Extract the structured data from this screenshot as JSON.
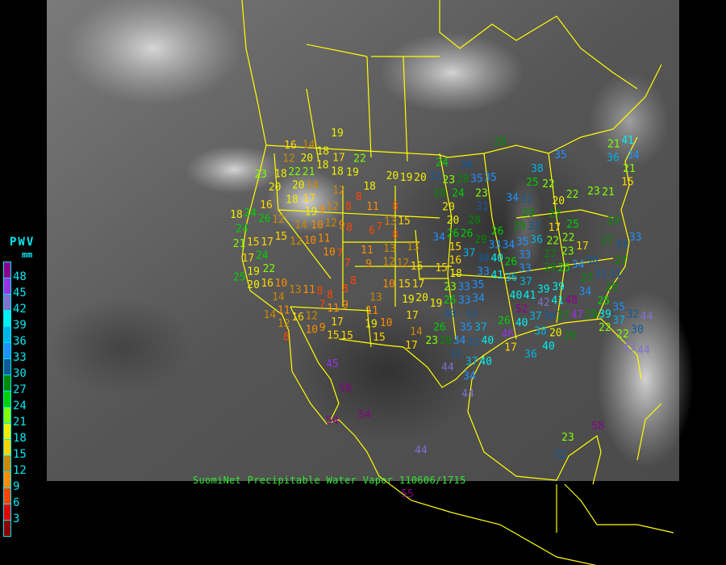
{
  "caption": "SuomiNet Precipitable Water Vapor 110606/1715",
  "legend": {
    "title": "PWV",
    "unit": "mm",
    "labels": [
      "48",
      "45",
      "42",
      "39",
      "36",
      "33",
      "30",
      "27",
      "24",
      "21",
      "18",
      "15",
      "12",
      "9",
      "6",
      "3"
    ],
    "colors": [
      "#8b008b",
      "#9932e6",
      "#8070d0",
      "#00f0f0",
      "#00b4e6",
      "#1e90ff",
      "#105a9a",
      "#008c00",
      "#00d000",
      "#80ff00",
      "#f0f000",
      "#ffd700",
      "#cc8800",
      "#ff8c00",
      "#ff4500",
      "#e00000",
      "#8b0000"
    ]
  },
  "border_color": "#ffff00",
  "stations": [
    19,
    16,
    14,
    18,
    12,
    20,
    18,
    21,
    23,
    18,
    22,
    20,
    20,
    14,
    17,
    18,
    19,
    22,
    20,
    19,
    20,
    18,
    12,
    8,
    11,
    8,
    16,
    18,
    17,
    19,
    9,
    12,
    8,
    18,
    24,
    26,
    12,
    14,
    10,
    12,
    9,
    8,
    6,
    7,
    13,
    15,
    8,
    24,
    21,
    15,
    17,
    15,
    12,
    10,
    11,
    10,
    7,
    11,
    13,
    13,
    9,
    7,
    12,
    12,
    15,
    24,
    22,
    20,
    17,
    25,
    19,
    16,
    10,
    13,
    11,
    8,
    7,
    8,
    8,
    8,
    11,
    9,
    13,
    11,
    14,
    11,
    14,
    12,
    16,
    12,
    8,
    10,
    9,
    17,
    15,
    19,
    10,
    15,
    15,
    10,
    15,
    17,
    20,
    19,
    17,
    14,
    17,
    23,
    26,
    29,
    19,
    15,
    16,
    15,
    18,
    23,
    33,
    35,
    33,
    34,
    32,
    26,
    30,
    35,
    34,
    32,
    37,
    40,
    31,
    24,
    32,
    30,
    35,
    23,
    28,
    35,
    28,
    24,
    23,
    20,
    31,
    28,
    34,
    32,
    25,
    22,
    20,
    22,
    27,
    17,
    25,
    23,
    21,
    21,
    15,
    21,
    41,
    34,
    36,
    38,
    28,
    35,
    29,
    29,
    32,
    29,
    36,
    22,
    22,
    23,
    17,
    27,
    31,
    33,
    34,
    30,
    34,
    20,
    26,
    26,
    29,
    26,
    33,
    34,
    35,
    30,
    26,
    40,
    37,
    41,
    33,
    36,
    37,
    33,
    33,
    29,
    27,
    25,
    27,
    34,
    29,
    27,
    31,
    31,
    40,
    41,
    39,
    39,
    42,
    41,
    48,
    47,
    40,
    37,
    30,
    27,
    29,
    22,
    35,
    25,
    39,
    37,
    32,
    30,
    22,
    44,
    43,
    44,
    37,
    34,
    44,
    40,
    44,
    38,
    40,
    20,
    29,
    26,
    46,
    17,
    36,
    52,
    45,
    50,
    54,
    54,
    44,
    55,
    58,
    23,
    32
  ]
}
